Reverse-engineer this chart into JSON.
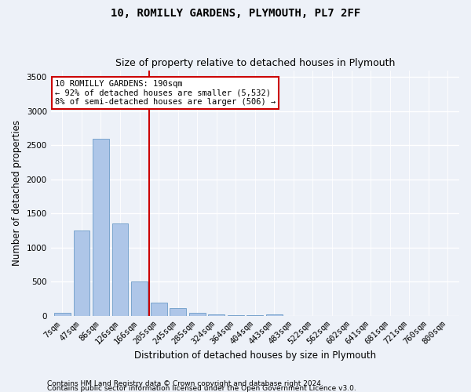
{
  "title": "10, ROMILLY GARDENS, PLYMOUTH, PL7 2FF",
  "subtitle": "Size of property relative to detached houses in Plymouth",
  "xlabel": "Distribution of detached houses by size in Plymouth",
  "ylabel": "Number of detached properties",
  "categories": [
    "7sqm",
    "47sqm",
    "86sqm",
    "126sqm",
    "166sqm",
    "205sqm",
    "245sqm",
    "285sqm",
    "324sqm",
    "364sqm",
    "404sqm",
    "443sqm",
    "483sqm",
    "522sqm",
    "562sqm",
    "602sqm",
    "641sqm",
    "681sqm",
    "721sqm",
    "760sqm",
    "800sqm"
  ],
  "values": [
    50,
    1250,
    2600,
    1350,
    500,
    200,
    110,
    50,
    25,
    15,
    10,
    25,
    0,
    0,
    0,
    0,
    0,
    0,
    0,
    0,
    0
  ],
  "bar_color": "#aec6e8",
  "bar_edge_color": "#5a8fc0",
  "vline_color": "#cc0000",
  "vline_x_idx": 4.5,
  "annotation_text": "10 ROMILLY GARDENS: 190sqm\n← 92% of detached houses are smaller (5,532)\n8% of semi-detached houses are larger (506) →",
  "annotation_box_color": "#ffffff",
  "annotation_box_edge": "#cc0000",
  "ylim": [
    0,
    3600
  ],
  "yticks": [
    0,
    500,
    1000,
    1500,
    2000,
    2500,
    3000,
    3500
  ],
  "footer1": "Contains HM Land Registry data © Crown copyright and database right 2024.",
  "footer2": "Contains public sector information licensed under the Open Government Licence v3.0.",
  "bg_color": "#edf1f8",
  "grid_color": "#ffffff",
  "title_fontsize": 10,
  "subtitle_fontsize": 9,
  "axis_label_fontsize": 8.5,
  "tick_fontsize": 7.5,
  "annotation_fontsize": 7.5,
  "footer_fontsize": 6.5
}
